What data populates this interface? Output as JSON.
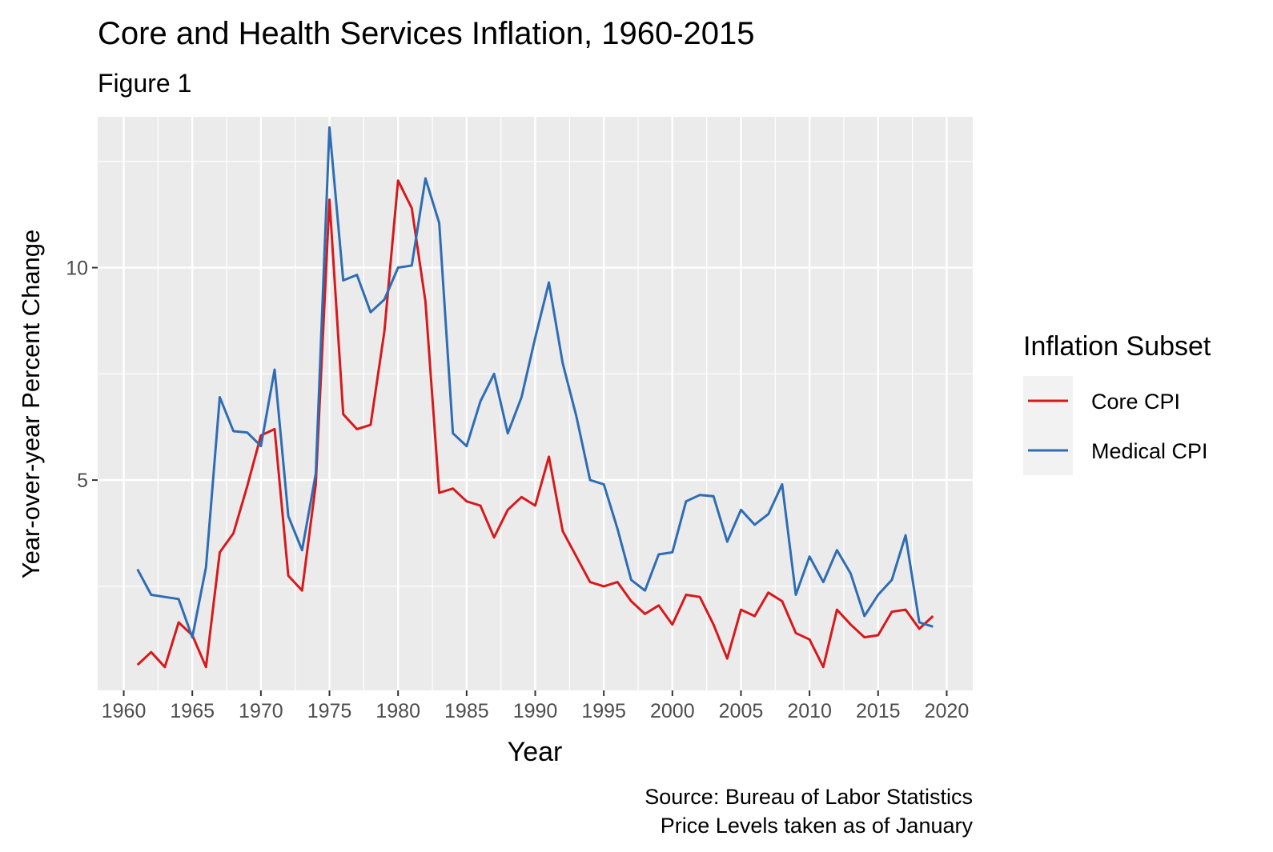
{
  "chart_data": {
    "type": "line",
    "title": "Core and Health Services Inflation, 1960-2015",
    "subtitle": "Figure 1",
    "xlabel": "Year",
    "ylabel": "Year-over-year Percent Change",
    "caption_lines": [
      "Source: Bureau of Labor Statistics",
      "Price Levels taken as of January"
    ],
    "x_ticks": [
      1960,
      1965,
      1970,
      1975,
      1980,
      1985,
      1990,
      1995,
      2000,
      2005,
      2010,
      2015,
      2020
    ],
    "y_ticks": [
      5,
      10
    ],
    "xlim": [
      1958.1,
      2021.9
    ],
    "ylim": [
      0.05,
      13.55
    ],
    "grid": true,
    "legend": {
      "title": "Inflation Subset",
      "position": "right"
    },
    "x": [
      1961,
      1962,
      1963,
      1964,
      1965,
      1966,
      1967,
      1968,
      1969,
      1970,
      1971,
      1972,
      1973,
      1974,
      1975,
      1976,
      1977,
      1978,
      1979,
      1980,
      1981,
      1982,
      1983,
      1984,
      1985,
      1986,
      1987,
      1988,
      1989,
      1990,
      1991,
      1992,
      1993,
      1994,
      1995,
      1996,
      1997,
      1998,
      1999,
      2000,
      2001,
      2002,
      2003,
      2004,
      2005,
      2006,
      2007,
      2008,
      2009,
      2010,
      2011,
      2012,
      2013,
      2014,
      2015,
      2016,
      2017,
      2018,
      2019
    ],
    "series": [
      {
        "name": "Core CPI",
        "color": "#D7191C",
        "values": [
          0.65,
          0.95,
          0.6,
          1.65,
          1.35,
          0.6,
          3.3,
          3.75,
          4.85,
          6.05,
          6.2,
          2.75,
          2.4,
          4.9,
          11.6,
          6.55,
          6.2,
          6.3,
          8.5,
          12.05,
          11.4,
          9.2,
          4.7,
          4.8,
          4.5,
          4.4,
          3.65,
          4.3,
          4.6,
          4.4,
          5.55,
          3.8,
          3.2,
          2.6,
          2.5,
          2.6,
          2.15,
          1.85,
          2.05,
          1.6,
          2.3,
          2.25,
          1.6,
          0.8,
          1.95,
          1.8,
          2.35,
          2.15,
          1.4,
          1.25,
          0.6,
          1.95,
          1.6,
          1.3,
          1.35,
          1.9,
          1.95,
          1.5,
          1.8
        ]
      },
      {
        "name": "Medical CPI",
        "color": "#2E6DB4",
        "values": [
          2.9,
          2.3,
          2.25,
          2.2,
          1.3,
          2.95,
          6.95,
          6.15,
          6.12,
          5.8,
          7.6,
          4.15,
          3.35,
          5.15,
          13.3,
          9.7,
          9.83,
          8.95,
          9.25,
          10.0,
          10.05,
          12.1,
          11.05,
          6.1,
          5.8,
          6.85,
          7.5,
          6.1,
          6.95,
          8.35,
          9.65,
          7.75,
          6.5,
          5.0,
          4.9,
          3.85,
          2.65,
          2.4,
          3.25,
          3.3,
          4.5,
          4.65,
          4.62,
          3.55,
          4.3,
          3.95,
          4.2,
          4.9,
          2.3,
          3.2,
          2.6,
          3.35,
          2.8,
          1.8,
          2.3,
          2.65,
          3.7,
          1.65,
          1.55
        ]
      }
    ]
  }
}
